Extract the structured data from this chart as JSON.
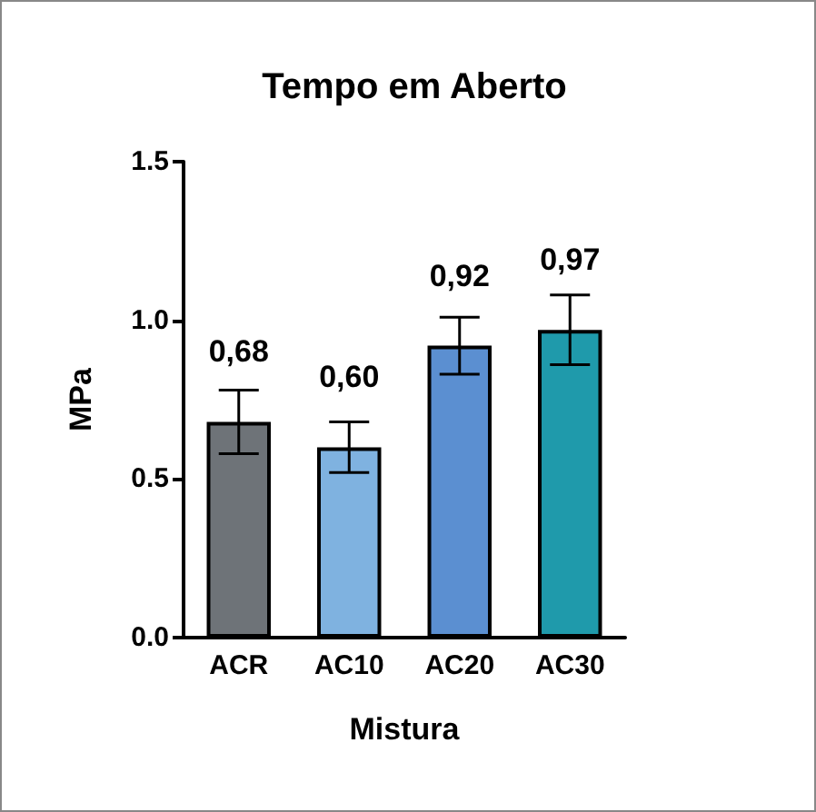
{
  "chart_data": {
    "type": "bar",
    "title": "Tempo em Aberto",
    "xlabel": "Mistura",
    "ylabel": "MPa",
    "categories": [
      "ACR",
      "AC10",
      "AC20",
      "AC30"
    ],
    "values": [
      0.68,
      0.6,
      0.92,
      0.97
    ],
    "colors": [
      "#6e7378",
      "#7fb2e0",
      "#5b8fd1",
      "#1f9aab"
    ],
    "errors": [
      0.1,
      0.08,
      0.09,
      0.11
    ],
    "value_labels": [
      "0,68",
      "0,60",
      "0,92",
      "0,97"
    ],
    "ylim": [
      0,
      1.5
    ],
    "yticks": [
      {
        "value": 0,
        "label": "0.0"
      },
      {
        "value": 0.5,
        "label": "0.5"
      },
      {
        "value": 1,
        "label": "1.0"
      },
      {
        "value": 1.5,
        "label": "1.5"
      }
    ],
    "grid": false
  }
}
